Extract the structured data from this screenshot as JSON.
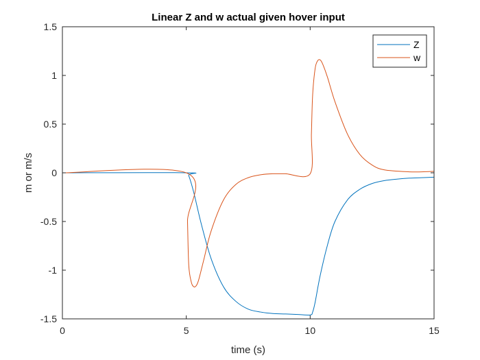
{
  "chart_data": {
    "type": "line",
    "title": "Linear Z and w actual given hover input",
    "xlabel": "time (s)",
    "ylabel": "m or m/s",
    "xlim": [
      0,
      15
    ],
    "ylim": [
      -1.5,
      1.5
    ],
    "xticks": [
      0,
      5,
      10,
      15
    ],
    "yticks": [
      1.5,
      1,
      0.5,
      0,
      -0.5,
      -1,
      -1.5
    ],
    "xtick_labels": [
      "0",
      "5",
      "10",
      "15"
    ],
    "ytick_labels": [
      "1.5",
      "1",
      "0.5",
      "0",
      "-0.5",
      "-1",
      "-1.5"
    ],
    "grid": false,
    "legend_position": "top-right",
    "series": [
      {
        "name": "Z",
        "color": "#0072BD",
        "x": [
          0,
          5.0,
          5.1,
          5.3,
          5.6,
          6.0,
          6.5,
          7.0,
          7.5,
          8.0,
          8.5,
          9.0,
          9.5,
          10.0,
          10.1,
          10.2,
          10.4,
          10.7,
          11.0,
          11.5,
          12.0,
          12.5,
          13.0,
          13.5,
          14.0,
          14.5,
          15.0
        ],
        "values": [
          0,
          0,
          -0.03,
          -0.2,
          -0.52,
          -0.88,
          -1.17,
          -1.32,
          -1.4,
          -1.43,
          -1.445,
          -1.45,
          -1.455,
          -1.46,
          -1.43,
          -1.33,
          -1.06,
          -0.74,
          -0.5,
          -0.28,
          -0.17,
          -0.11,
          -0.08,
          -0.065,
          -0.055,
          -0.05,
          -0.045
        ]
      },
      {
        "name": "w",
        "color": "#D95319",
        "x": [
          0,
          5.0,
          5.05,
          5.1,
          5.2,
          5.3,
          5.4,
          5.5,
          5.7,
          6.0,
          6.5,
          7.0,
          7.5,
          8.0,
          8.5,
          9.0,
          10.0,
          10.05,
          10.1,
          10.2,
          10.3,
          10.4,
          10.5,
          10.7,
          11.0,
          11.5,
          12.0,
          12.5,
          13.0,
          14.0,
          14.5,
          15.0
        ],
        "values": [
          0,
          0,
          -0.5,
          -0.95,
          -1.12,
          -1.17,
          -1.16,
          -1.1,
          -0.9,
          -0.6,
          -0.28,
          -0.12,
          -0.05,
          -0.02,
          -0.01,
          -0.01,
          -0.01,
          0.4,
          0.8,
          1.07,
          1.15,
          1.16,
          1.12,
          0.98,
          0.73,
          0.4,
          0.19,
          0.08,
          0.03,
          0.01,
          0.01,
          0.015
        ]
      }
    ]
  }
}
